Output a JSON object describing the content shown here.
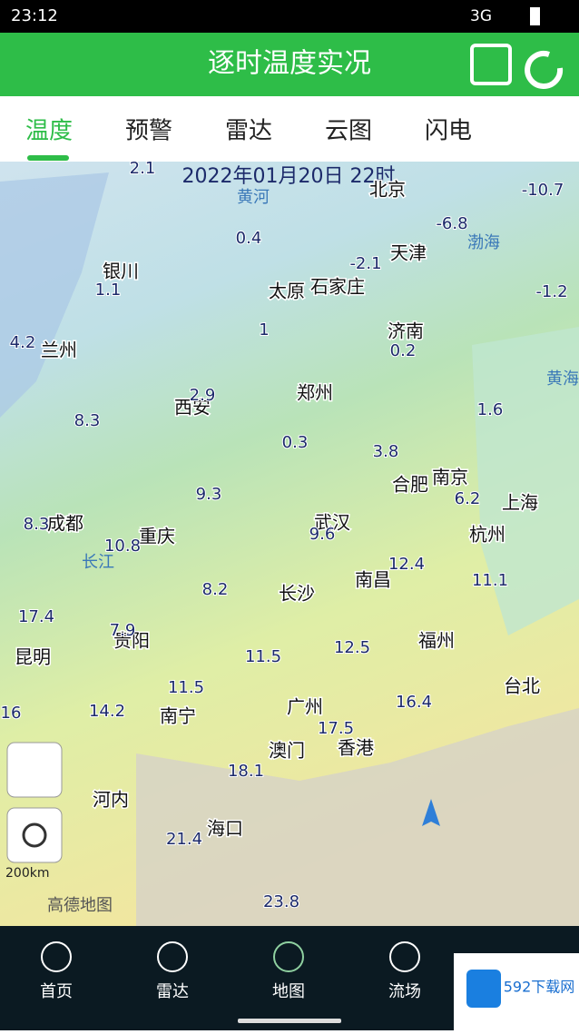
{
  "status_bar": {
    "time": "23:12",
    "network": "3G"
  },
  "header": {
    "title": "逐时温度实况"
  },
  "tabs": [
    "温度",
    "预警",
    "雷达",
    "云图",
    "闪电"
  ],
  "map": {
    "timestamp": "2022年01月20日 22时",
    "cities": [
      "北京",
      "天津",
      "银川",
      "太原",
      "石家庄",
      "济南",
      "兰州",
      "西安",
      "郑州",
      "合肥",
      "南京",
      "上海",
      "成都",
      "武汉",
      "杭州",
      "重庆",
      "南昌",
      "长沙",
      "贵阳",
      "福州",
      "昆明",
      "台北",
      "广州",
      "南宁",
      "澳门",
      "香港",
      "河内",
      "海口"
    ],
    "temperatures": [
      2.1,
      -10.7,
      -6.8,
      0.4,
      -2.1,
      1.1,
      -1.2,
      1,
      4.2,
      0.2,
      2.9,
      8.3,
      1.6,
      0.3,
      3.8,
      9.3,
      6.2,
      8.3,
      9.6,
      10.8,
      12.4,
      11.1,
      8.2,
      17.4,
      7.9,
      11.5,
      12.5,
      11.5,
      16.4,
      16,
      14.2,
      17.5,
      18.1,
      21.4,
      23.8
    ],
    "features": [
      "黄河",
      "渤海",
      "黄海",
      "长江"
    ],
    "scale": "200km",
    "provider": "高德地图"
  },
  "bottom_nav": [
    "首页",
    "雷达",
    "地图",
    "流场"
  ],
  "watermark": "592下载网"
}
